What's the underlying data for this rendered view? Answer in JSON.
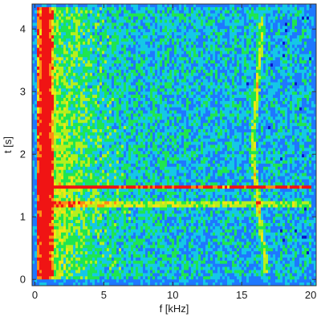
{
  "chart_data": {
    "type": "heatmap",
    "title": "",
    "xlabel": "f [kHz]",
    "ylabel": "t [s]",
    "xlim": [
      -0.2,
      20.4
    ],
    "ylim": [
      -0.1,
      4.4
    ],
    "x_ticks": [
      {
        "value": 0,
        "label": "0"
      },
      {
        "value": 5,
        "label": "5"
      },
      {
        "value": 10,
        "label": "10"
      },
      {
        "value": 15,
        "label": "15"
      },
      {
        "value": 20,
        "label": "20"
      }
    ],
    "y_ticks": [
      {
        "value": 0,
        "label": "0"
      },
      {
        "value": 1,
        "label": "1"
      },
      {
        "value": 2,
        "label": "2"
      },
      {
        "value": 3,
        "label": "3"
      },
      {
        "value": 4,
        "label": "4"
      }
    ],
    "grid": false,
    "colormap": [
      "#0a14c8",
      "#1e78ff",
      "#14c8e6",
      "#1ee650",
      "#b4f01e",
      "#f0e614",
      "#ff8c14",
      "#f01414"
    ],
    "frame_color": "#333333",
    "features": [
      {
        "kind": "horizontal-band",
        "t": 1.2,
        "f_from": 0.2,
        "f_to": 20,
        "level": "high"
      },
      {
        "kind": "horizontal-band",
        "t": 1.48,
        "f_from": 0.2,
        "f_to": 20,
        "level": "high"
      },
      {
        "kind": "vertical-band",
        "f": 0.8,
        "t_from": 0,
        "t_to": 4.35,
        "level": "high"
      },
      {
        "kind": "curved-line",
        "points": [
          [
            16.5,
            4.2
          ],
          [
            16.2,
            3.3
          ],
          [
            15.9,
            2.5
          ],
          [
            15.8,
            2.0
          ],
          [
            16.0,
            1.6
          ],
          [
            16.3,
            1.0
          ],
          [
            16.8,
            0.1
          ]
        ],
        "level": "medium"
      }
    ]
  }
}
